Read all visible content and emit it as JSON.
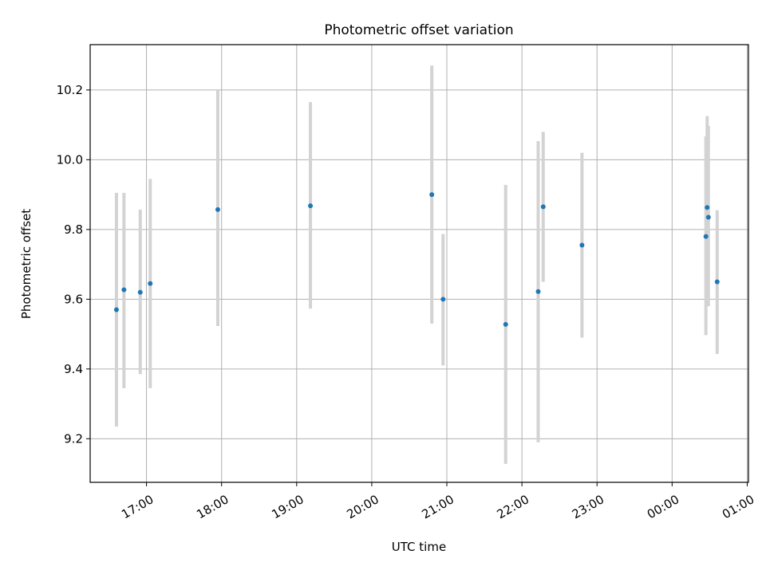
{
  "chart_data": {
    "type": "scatter",
    "title": "Photometric offset variation",
    "xlabel": "UTC time",
    "ylabel": "Photometric offset",
    "x_unit": "hours since 00:00 on the first day (UTC)",
    "x_tick_labels": [
      "17:00",
      "18:00",
      "19:00",
      "20:00",
      "21:00",
      "22:00",
      "23:00",
      "00:00",
      "01:00"
    ],
    "y_ticks": [
      9.2,
      9.4,
      9.6,
      9.8,
      10.0,
      10.2
    ],
    "y_tick_labels": [
      "9.2",
      "9.4",
      "9.6",
      "9.8",
      "10.0",
      "10.2"
    ],
    "xlim": [
      "16:15",
      "01:01"
    ],
    "ylim": [
      9.075,
      10.33
    ],
    "grid": true,
    "legend": "none",
    "colors": {
      "points": "#1f77b4",
      "errorbars": "#d3d3d3",
      "grid": "#b0b0b0"
    },
    "points": [
      {
        "time": "16:36",
        "y": 9.57,
        "err_low": 9.235,
        "err_high": 9.905
      },
      {
        "time": "16:42",
        "y": 9.627,
        "err_low": 9.345,
        "err_high": 9.905
      },
      {
        "time": "16:55",
        "y": 9.62,
        "err_low": 9.385,
        "err_high": 9.857
      },
      {
        "time": "17:03",
        "y": 9.645,
        "err_low": 9.345,
        "err_high": 9.945
      },
      {
        "time": "17:57",
        "y": 9.857,
        "err_low": 9.523,
        "err_high": 10.2
      },
      {
        "time": "19:11",
        "y": 9.868,
        "err_low": 9.573,
        "err_high": 10.165
      },
      {
        "time": "20:48",
        "y": 9.9,
        "err_low": 9.53,
        "err_high": 10.27
      },
      {
        "time": "20:57",
        "y": 9.6,
        "err_low": 9.41,
        "err_high": 9.787
      },
      {
        "time": "21:47",
        "y": 9.528,
        "err_low": 9.128,
        "err_high": 9.928
      },
      {
        "time": "22:13",
        "y": 9.622,
        "err_low": 9.19,
        "err_high": 10.053
      },
      {
        "time": "22:17",
        "y": 9.865,
        "err_low": 9.65,
        "err_high": 10.08
      },
      {
        "time": "22:48",
        "y": 9.755,
        "err_low": 9.49,
        "err_high": 10.02
      },
      {
        "time": "00:27",
        "y": 9.78,
        "err_low": 9.497,
        "err_high": 10.067
      },
      {
        "time": "00:28",
        "y": 9.863,
        "err_low": 9.6,
        "err_high": 10.125
      },
      {
        "time": "00:29",
        "y": 9.835,
        "err_low": 9.58,
        "err_high": 10.097
      },
      {
        "time": "00:36",
        "y": 9.65,
        "err_low": 9.443,
        "err_high": 9.855
      }
    ]
  }
}
